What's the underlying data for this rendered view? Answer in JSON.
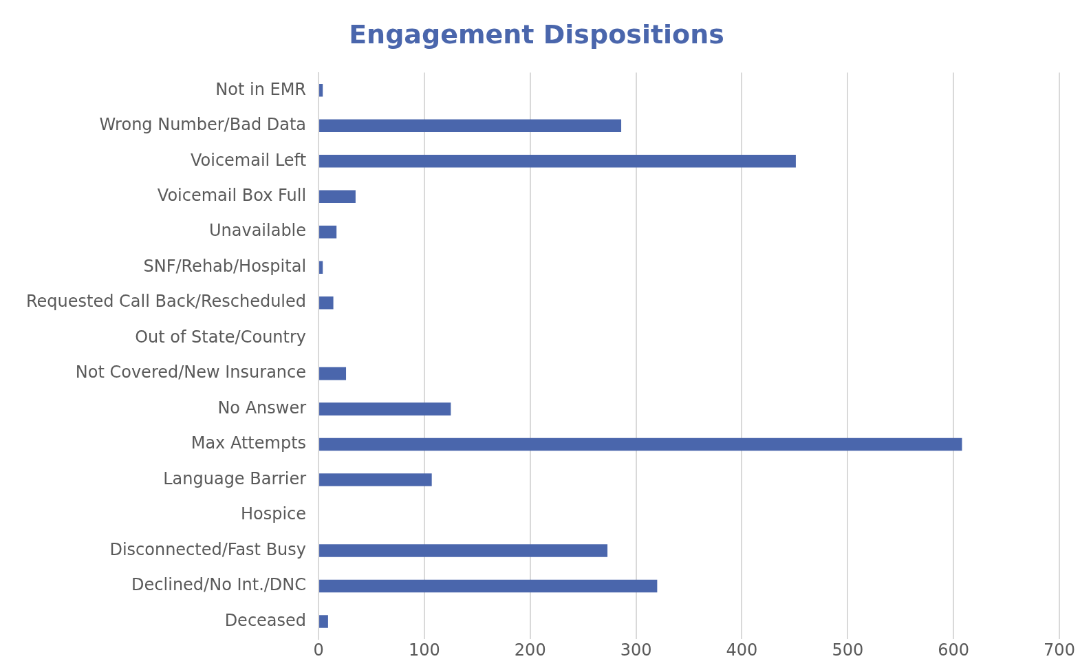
{
  "chart_data": {
    "type": "bar",
    "orientation": "horizontal",
    "title": "Engagement Dispositions",
    "categories": [
      "Not in EMR",
      "Wrong Number/Bad Data",
      "Voicemail Left",
      "Voicemail Box Full",
      "Unavailable",
      "SNF/Rehab/Hospital",
      "Requested Call Back/Rescheduled",
      "Out of State/Country",
      "Not Covered/New Insurance",
      "No Answer",
      "Max Attempts",
      "Language Barrier",
      "Hospice",
      "Disconnected/Fast Busy",
      "Declined/No Int./DNC",
      "Deceased"
    ],
    "values": [
      4,
      286,
      451,
      35,
      17,
      4,
      14,
      0,
      26,
      125,
      608,
      107,
      0,
      273,
      320,
      9
    ],
    "color": "#4a66ac",
    "xlim": [
      0,
      700
    ],
    "xticks": [
      0,
      100,
      200,
      300,
      400,
      500,
      600,
      700
    ],
    "grid": "x"
  }
}
